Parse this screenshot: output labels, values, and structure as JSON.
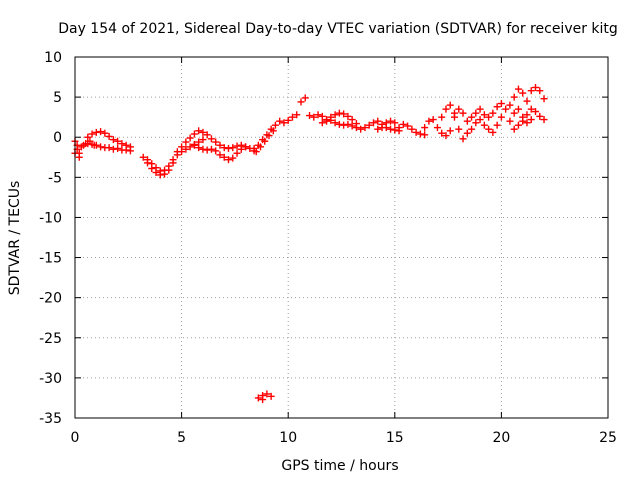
{
  "chart_data": {
    "type": "scatter",
    "title": "Day 154 of 2021, Sidereal Day-to-day VTEC variation (SDTVAR) for receiver kitg",
    "xlabel": "GPS time / hours",
    "ylabel": "SDTVAR / TECUs",
    "xlim": [
      0,
      25
    ],
    "ylim": [
      -35,
      10
    ],
    "xticks": [
      "0",
      "5",
      "10",
      "15",
      "20",
      "25"
    ],
    "yticks": [
      "10",
      "5",
      "0",
      "-5",
      "-10",
      "-15",
      "-20",
      "-25",
      "-30",
      "-35"
    ],
    "grid": true,
    "marker": "+",
    "color": "#ff0000",
    "series": [
      {
        "name": "SDTVAR",
        "points": [
          [
            0.0,
            -2.0
          ],
          [
            0.1,
            -1.5
          ],
          [
            0.2,
            -2.0
          ],
          [
            0.3,
            -1.2
          ],
          [
            0.4,
            -1.0
          ],
          [
            0.5,
            -0.8
          ],
          [
            0.6,
            -0.8
          ],
          [
            0.7,
            -0.5
          ],
          [
            0.8,
            -0.9
          ],
          [
            0.9,
            -1.0
          ],
          [
            1.0,
            -1.0
          ],
          [
            1.2,
            -1.2
          ],
          [
            1.4,
            -1.3
          ],
          [
            1.6,
            -1.3
          ],
          [
            1.8,
            -1.5
          ],
          [
            2.0,
            -1.4
          ],
          [
            2.2,
            -1.6
          ],
          [
            2.4,
            -1.6
          ],
          [
            2.6,
            -1.7
          ],
          [
            0.6,
            0.0
          ],
          [
            0.8,
            0.4
          ],
          [
            1.0,
            0.6
          ],
          [
            1.2,
            0.7
          ],
          [
            1.4,
            0.5
          ],
          [
            1.6,
            0.1
          ],
          [
            1.8,
            -0.3
          ],
          [
            2.0,
            -0.5
          ],
          [
            2.2,
            -0.8
          ],
          [
            2.4,
            -1.0
          ],
          [
            2.6,
            -1.2
          ],
          [
            0.0,
            -0.5
          ],
          [
            0.1,
            -1.0
          ],
          [
            0.2,
            -2.5
          ],
          [
            3.2,
            -2.5
          ],
          [
            3.4,
            -3.2
          ],
          [
            3.6,
            -3.9
          ],
          [
            3.8,
            -4.4
          ],
          [
            4.0,
            -4.7
          ],
          [
            4.2,
            -4.6
          ],
          [
            4.4,
            -4.1
          ],
          [
            4.6,
            -3.2
          ],
          [
            4.8,
            -2.2
          ],
          [
            3.4,
            -2.8
          ],
          [
            3.6,
            -3.3
          ],
          [
            3.8,
            -3.8
          ],
          [
            4.0,
            -4.2
          ],
          [
            4.2,
            -4.1
          ],
          [
            4.4,
            -3.6
          ],
          [
            4.6,
            -2.8
          ],
          [
            4.8,
            -1.8
          ],
          [
            5.0,
            -1.2
          ],
          [
            5.2,
            -0.6
          ],
          [
            5.4,
            -0.1
          ],
          [
            5.6,
            0.4
          ],
          [
            5.8,
            0.8
          ],
          [
            6.0,
            0.6
          ],
          [
            6.2,
            0.3
          ],
          [
            5.0,
            -1.8
          ],
          [
            5.2,
            -1.5
          ],
          [
            5.4,
            -1.2
          ],
          [
            5.6,
            -0.9
          ],
          [
            5.8,
            -0.6
          ],
          [
            6.0,
            -0.3
          ],
          [
            5.6,
            -1.0
          ],
          [
            5.8,
            -1.3
          ],
          [
            6.0,
            -1.5
          ],
          [
            6.2,
            -1.6
          ],
          [
            6.4,
            -1.5
          ],
          [
            6.6,
            -1.7
          ],
          [
            6.8,
            -2.2
          ],
          [
            7.0,
            -2.5
          ],
          [
            7.2,
            -2.8
          ],
          [
            7.4,
            -2.6
          ],
          [
            7.6,
            -2.0
          ],
          [
            7.8,
            -1.5
          ],
          [
            8.0,
            -1.2
          ],
          [
            6.4,
            -0.2
          ],
          [
            6.6,
            -0.6
          ],
          [
            6.8,
            -1.0
          ],
          [
            7.0,
            -1.3
          ],
          [
            7.2,
            -1.4
          ],
          [
            7.4,
            -1.3
          ],
          [
            7.6,
            -1.1
          ],
          [
            7.8,
            -1.0
          ],
          [
            8.0,
            -1.2
          ],
          [
            8.2,
            -1.4
          ],
          [
            8.4,
            -1.7
          ],
          [
            8.4,
            -1.4
          ],
          [
            8.6,
            -1.0
          ],
          [
            8.8,
            -0.3
          ],
          [
            9.0,
            0.3
          ],
          [
            9.2,
            1.0
          ],
          [
            9.4,
            1.5
          ],
          [
            9.6,
            2.0
          ],
          [
            8.5,
            -1.8
          ],
          [
            8.7,
            -1.2
          ],
          [
            8.9,
            -0.5
          ],
          [
            9.1,
            0.2
          ],
          [
            9.3,
            0.8
          ],
          [
            8.6,
            -32.5
          ],
          [
            8.8,
            -32.2
          ],
          [
            9.0,
            -32.0
          ],
          [
            9.2,
            -32.3
          ],
          [
            8.8,
            -32.7
          ],
          [
            9.8,
            1.8
          ],
          [
            10.0,
            2.1
          ],
          [
            10.2,
            2.5
          ],
          [
            10.4,
            2.8
          ],
          [
            10.6,
            4.4
          ],
          [
            10.8,
            4.9
          ],
          [
            11.0,
            2.7
          ],
          [
            11.2,
            2.5
          ],
          [
            11.4,
            2.8
          ],
          [
            11.6,
            2.6
          ],
          [
            11.8,
            2.2
          ],
          [
            12.0,
            2.1
          ],
          [
            12.2,
            1.8
          ],
          [
            12.4,
            1.6
          ],
          [
            12.6,
            1.5
          ],
          [
            12.8,
            1.6
          ],
          [
            13.0,
            1.4
          ],
          [
            13.2,
            1.2
          ],
          [
            13.4,
            1.0
          ],
          [
            11.6,
            1.8
          ],
          [
            11.8,
            2.0
          ],
          [
            12.0,
            2.5
          ],
          [
            12.2,
            2.8
          ],
          [
            12.4,
            3.0
          ],
          [
            12.6,
            2.9
          ],
          [
            12.8,
            2.6
          ],
          [
            13.0,
            2.2
          ],
          [
            13.2,
            1.7
          ],
          [
            13.6,
            1.2
          ],
          [
            13.8,
            1.5
          ],
          [
            14.0,
            1.8
          ],
          [
            14.2,
            2.0
          ],
          [
            14.4,
            1.6
          ],
          [
            14.6,
            1.2
          ],
          [
            14.8,
            1.0
          ],
          [
            15.0,
            0.9
          ],
          [
            15.2,
            1.2
          ],
          [
            15.4,
            1.6
          ],
          [
            15.6,
            1.4
          ],
          [
            15.8,
            1.0
          ],
          [
            16.0,
            0.6
          ],
          [
            16.2,
            0.4
          ],
          [
            16.4,
            0.3
          ],
          [
            14.2,
            1.0
          ],
          [
            14.4,
            1.2
          ],
          [
            14.6,
            1.8
          ],
          [
            14.8,
            2.0
          ],
          [
            15.0,
            1.8
          ],
          [
            15.2,
            0.8
          ],
          [
            16.4,
            1.2
          ],
          [
            16.6,
            2.0
          ],
          [
            16.8,
            2.2
          ],
          [
            17.0,
            1.2
          ],
          [
            17.2,
            0.5
          ],
          [
            17.4,
            0.2
          ],
          [
            17.6,
            0.8
          ],
          [
            17.8,
            2.5
          ],
          [
            18.0,
            3.5
          ],
          [
            18.2,
            3.0
          ],
          [
            18.4,
            2.0
          ],
          [
            17.2,
            2.5
          ],
          [
            17.4,
            3.5
          ],
          [
            17.6,
            4.0
          ],
          [
            17.8,
            3.0
          ],
          [
            18.0,
            1.0
          ],
          [
            18.2,
            -0.2
          ],
          [
            18.4,
            0.5
          ],
          [
            18.6,
            2.5
          ],
          [
            18.8,
            3.0
          ],
          [
            19.0,
            3.5
          ],
          [
            19.2,
            2.8
          ],
          [
            19.4,
            2.5
          ],
          [
            19.6,
            3.0
          ],
          [
            19.8,
            3.8
          ],
          [
            20.0,
            4.2
          ],
          [
            20.2,
            3.5
          ],
          [
            18.6,
            1.0
          ],
          [
            18.8,
            1.8
          ],
          [
            19.0,
            2.2
          ],
          [
            19.2,
            1.5
          ],
          [
            19.4,
            1.0
          ],
          [
            19.6,
            0.6
          ],
          [
            19.8,
            1.5
          ],
          [
            20.0,
            2.5
          ],
          [
            20.4,
            4.0
          ],
          [
            20.6,
            5.0
          ],
          [
            20.8,
            6.0
          ],
          [
            21.0,
            5.5
          ],
          [
            21.2,
            4.5
          ],
          [
            21.4,
            5.8
          ],
          [
            21.6,
            6.2
          ],
          [
            21.8,
            5.8
          ],
          [
            22.0,
            4.8
          ],
          [
            20.4,
            2.0
          ],
          [
            20.6,
            3.0
          ],
          [
            20.8,
            3.5
          ],
          [
            21.0,
            2.5
          ],
          [
            21.2,
            2.8
          ],
          [
            21.4,
            3.5
          ],
          [
            21.6,
            3.2
          ],
          [
            21.8,
            2.6
          ],
          [
            22.0,
            2.2
          ],
          [
            20.6,
            1.0
          ],
          [
            20.8,
            1.5
          ],
          [
            21.0,
            2.0
          ],
          [
            21.2,
            1.8
          ],
          [
            21.4,
            2.2
          ]
        ]
      }
    ]
  }
}
